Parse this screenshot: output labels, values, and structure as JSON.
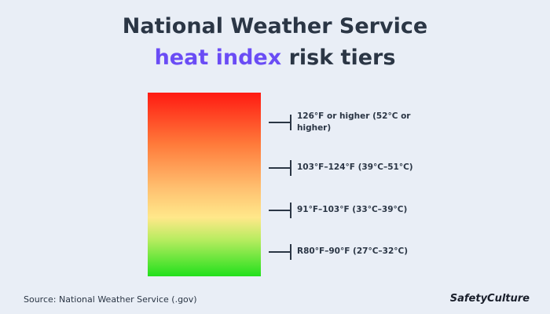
{
  "header": {
    "title_line1": "National Weather Service",
    "title_highlight": "heat index",
    "title_rest": "risk tiers"
  },
  "tiers": [
    {
      "label": "126°F or higher (52°C or higher)"
    },
    {
      "label": "103°F–124°F (39°C–51°C)"
    },
    {
      "label": "91°F–103°F (33°C–39°C)"
    },
    {
      "label": "R80°F–90°F (27°C–32°C)"
    }
  ],
  "footer": {
    "source": "Source: National Weather Service (.gov)",
    "logo": "SafetyCulture"
  }
}
